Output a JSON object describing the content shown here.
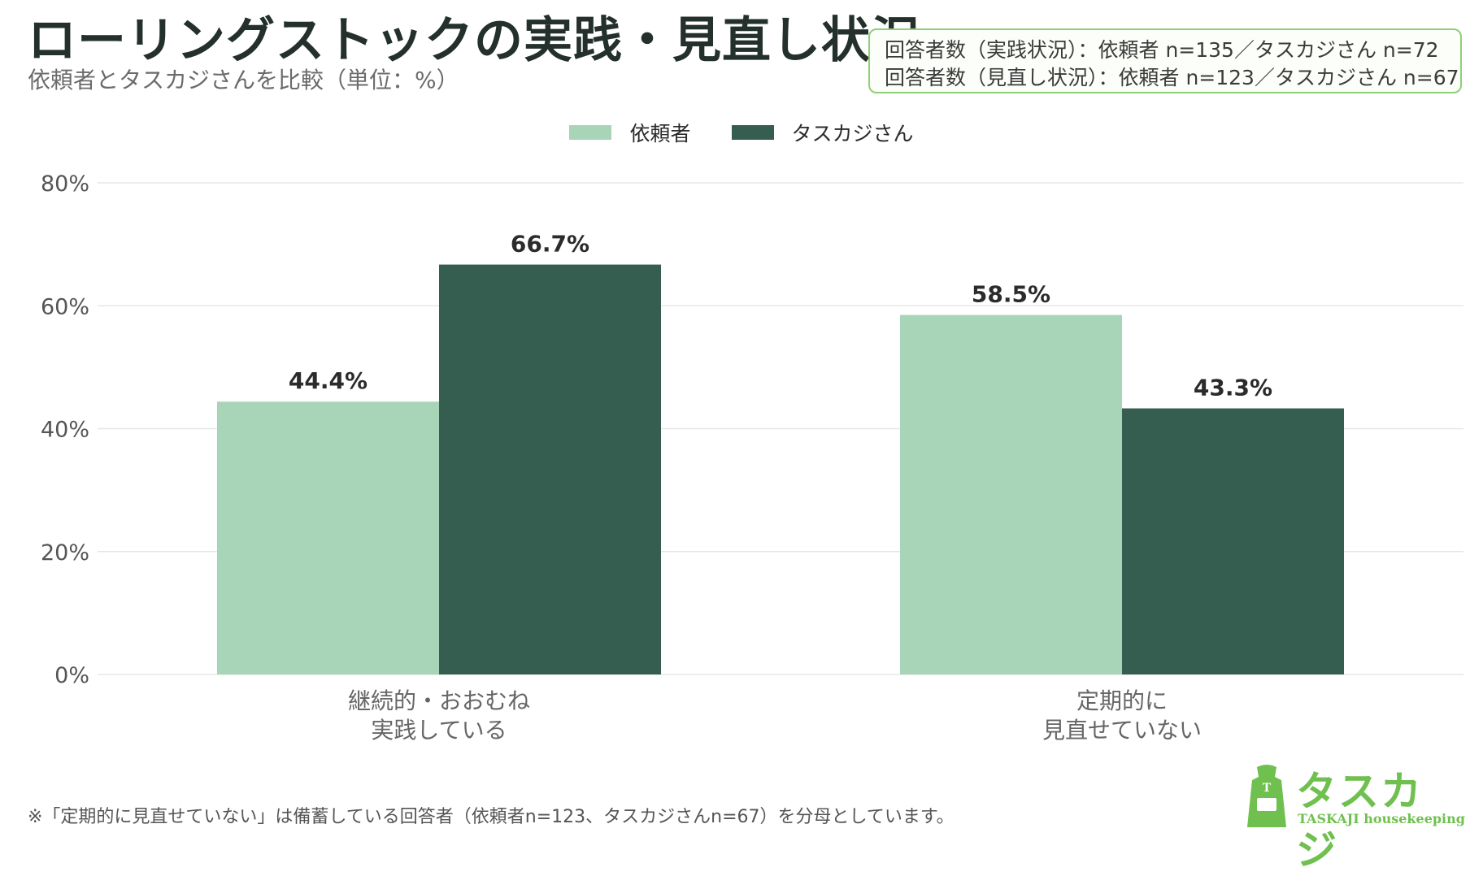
{
  "header": {
    "title": "ローリングストックの実践・見直し状況",
    "subtitle": "依頼者とタスカジさんを比較（単位：%）"
  },
  "sample_box": {
    "line1": "回答者数（実践状況）：依頼者 n=135／タスカジさん n=72",
    "line2": "回答者数（見直し状況）：依頼者 n=123／タスカジさん n=67"
  },
  "footnote": "※「定期的に見直せていない」は備蓄している回答者（依頼者n=123、タスカジさんn=67）を分母としています。",
  "logo": {
    "text": "タスカジ",
    "sub": "TASKAJI housekeeping",
    "color": "#6fc04e"
  },
  "chart_data": {
    "type": "bar",
    "categories": [
      [
        "継続的・おおむね",
        "実践している"
      ],
      [
        "定期的に",
        "見直せていない"
      ]
    ],
    "series": [
      {
        "name": "依頼者",
        "values": [
          44.4,
          58.5
        ],
        "color": "#a8d5b8"
      },
      {
        "name": "タスカジさん",
        "values": [
          66.7,
          43.3
        ],
        "color": "#355e51"
      }
    ],
    "value_labels": [
      [
        "44.4%",
        "58.5%"
      ],
      [
        "66.7%",
        "43.3%"
      ]
    ],
    "ylim": [
      0,
      80
    ],
    "yticks": [
      0,
      20,
      40,
      60,
      80
    ],
    "ytick_labels": [
      "0%",
      "20%",
      "40%",
      "60%",
      "80%"
    ],
    "legend_position": "top-center",
    "grid": true
  }
}
